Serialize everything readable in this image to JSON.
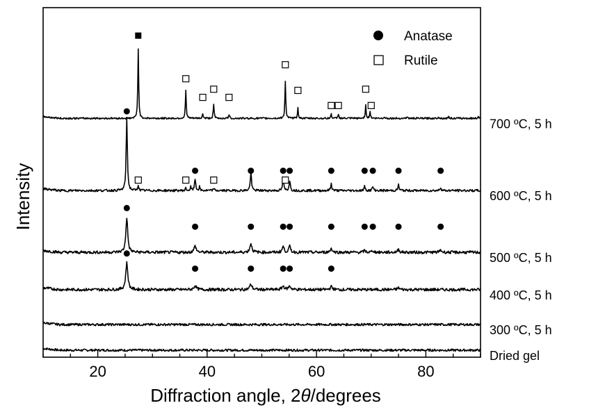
{
  "chart_data": {
    "type": "line",
    "xlabel_prefix": "Diffraction angle, 2",
    "xlabel_symbol": "θ",
    "xlabel_suffix": "/degrees",
    "ylabel": "Intensity",
    "xlim": [
      10,
      90
    ],
    "xticks": [
      20,
      40,
      60,
      80
    ],
    "grid": false,
    "legend": {
      "placement": "top-right",
      "entries": [
        {
          "name": "Anatase",
          "marker": "filled-circle"
        },
        {
          "name": "Rutile",
          "marker": "open-square"
        }
      ]
    },
    "series": [
      {
        "name": "Dried gel",
        "baseline": 0.6,
        "noise": 0.2,
        "peaks": []
      },
      {
        "name": "300 ºC, 5 h",
        "baseline": 2.8,
        "noise": 0.2,
        "peaks": []
      },
      {
        "name": "400 ºC, 5 h",
        "baseline": 5.8,
        "noise": 0.25,
        "peaks": [
          {
            "x": 25.3,
            "h": 2.3,
            "w": 0.45
          },
          {
            "x": 37.8,
            "h": 0.35,
            "w": 0.5
          },
          {
            "x": 48.0,
            "h": 0.45,
            "w": 0.5
          },
          {
            "x": 53.9,
            "h": 0.3,
            "w": 0.5
          },
          {
            "x": 55.1,
            "h": 0.3,
            "w": 0.5
          },
          {
            "x": 62.7,
            "h": 0.25,
            "w": 0.5
          },
          {
            "x": 75.0,
            "h": 0.15,
            "w": 0.5
          }
        ],
        "anatase_marks": [
          25.3,
          37.8,
          48.0,
          53.9,
          55.1,
          62.7
        ],
        "rutile_marks": [],
        "mark_y": 7.6,
        "mark_y_main": 8.9
      },
      {
        "name": "500 ºC, 5 h",
        "baseline": 9.0,
        "noise": 0.25,
        "peaks": [
          {
            "x": 25.3,
            "h": 3.0,
            "w": 0.4
          },
          {
            "x": 37.8,
            "h": 0.55,
            "w": 0.45
          },
          {
            "x": 48.0,
            "h": 0.75,
            "w": 0.45
          },
          {
            "x": 53.9,
            "h": 0.5,
            "w": 0.4
          },
          {
            "x": 55.1,
            "h": 0.5,
            "w": 0.4
          },
          {
            "x": 62.7,
            "h": 0.35,
            "w": 0.4
          },
          {
            "x": 68.8,
            "h": 0.15,
            "w": 0.4
          },
          {
            "x": 70.3,
            "h": 0.15,
            "w": 0.4
          },
          {
            "x": 75.0,
            "h": 0.25,
            "w": 0.4
          },
          {
            "x": 82.7,
            "h": 0.2,
            "w": 0.4
          }
        ],
        "anatase_marks": [
          25.3,
          37.8,
          48.0,
          53.9,
          55.1,
          62.7,
          68.8,
          70.3,
          75.0,
          82.7
        ],
        "rutile_marks": [],
        "mark_y": 11.2,
        "mark_y_main": 12.8
      },
      {
        "name": "600 ºC, 5 h",
        "baseline": 14.3,
        "noise": 0.2,
        "peaks": [
          {
            "x": 25.3,
            "h": 6.3,
            "w": 0.25
          },
          {
            "x": 27.4,
            "h": 0.5,
            "w": 0.2
          },
          {
            "x": 36.1,
            "h": 0.2,
            "w": 0.2
          },
          {
            "x": 37.0,
            "h": 0.3,
            "w": 0.2
          },
          {
            "x": 37.8,
            "h": 1.0,
            "w": 0.25
          },
          {
            "x": 38.6,
            "h": 0.3,
            "w": 0.2
          },
          {
            "x": 41.2,
            "h": 0.2,
            "w": 0.2
          },
          {
            "x": 48.0,
            "h": 1.6,
            "w": 0.25
          },
          {
            "x": 53.9,
            "h": 1.0,
            "w": 0.25
          },
          {
            "x": 55.1,
            "h": 0.9,
            "w": 0.25
          },
          {
            "x": 62.7,
            "h": 0.6,
            "w": 0.25
          },
          {
            "x": 68.8,
            "h": 0.35,
            "w": 0.25
          },
          {
            "x": 70.3,
            "h": 0.35,
            "w": 0.25
          },
          {
            "x": 75.0,
            "h": 0.5,
            "w": 0.25
          },
          {
            "x": 82.7,
            "h": 0.3,
            "w": 0.25
          }
        ],
        "anatase_marks": [
          25.3,
          37.8,
          48.0,
          53.9,
          55.1,
          62.7,
          68.8,
          70.3,
          75.0,
          82.7
        ],
        "rutile_marks": [
          27.4,
          36.1,
          41.2,
          54.3
        ],
        "anatase_mark_y": 16.0,
        "rutile_mark_y": 15.2,
        "mark_y_main": 21.1
      },
      {
        "name": "700 ºC, 5 h",
        "baseline": 20.5,
        "noise": 0.15,
        "peaks": [
          {
            "x": 27.4,
            "h": 6.0,
            "w": 0.18
          },
          {
            "x": 36.1,
            "h": 2.4,
            "w": 0.18
          },
          {
            "x": 39.2,
            "h": 0.4,
            "w": 0.18
          },
          {
            "x": 41.2,
            "h": 1.2,
            "w": 0.18
          },
          {
            "x": 44.0,
            "h": 0.35,
            "w": 0.18
          },
          {
            "x": 54.3,
            "h": 3.2,
            "w": 0.18
          },
          {
            "x": 56.6,
            "h": 0.9,
            "w": 0.18
          },
          {
            "x": 62.7,
            "h": 0.4,
            "w": 0.18
          },
          {
            "x": 64.0,
            "h": 0.4,
            "w": 0.18
          },
          {
            "x": 69.0,
            "h": 1.1,
            "w": 0.18
          },
          {
            "x": 69.8,
            "h": 0.6,
            "w": 0.18
          },
          {
            "x": 72.4,
            "h": 0.15,
            "w": 0.18
          },
          {
            "x": 76.5,
            "h": 0.15,
            "w": 0.18
          },
          {
            "x": 82.3,
            "h": 0.15,
            "w": 0.18
          },
          {
            "x": 84.2,
            "h": 0.15,
            "w": 0.18
          },
          {
            "x": 89.6,
            "h": 0.2,
            "w": 0.18
          }
        ],
        "anatase_marks": [],
        "rutile_marks": [
          36.1,
          39.2,
          41.2,
          44.0,
          54.3,
          56.6,
          62.7,
          64.0,
          69.0,
          70.0
        ],
        "rutile_mark_heights": [
          23.9,
          22.3,
          23.0,
          22.3,
          25.1,
          22.9,
          21.6,
          21.6,
          23.0,
          21.6
        ],
        "main_peak_mark": {
          "x": 27.4,
          "y": 27.6,
          "marker": "filled-square"
        }
      }
    ]
  }
}
